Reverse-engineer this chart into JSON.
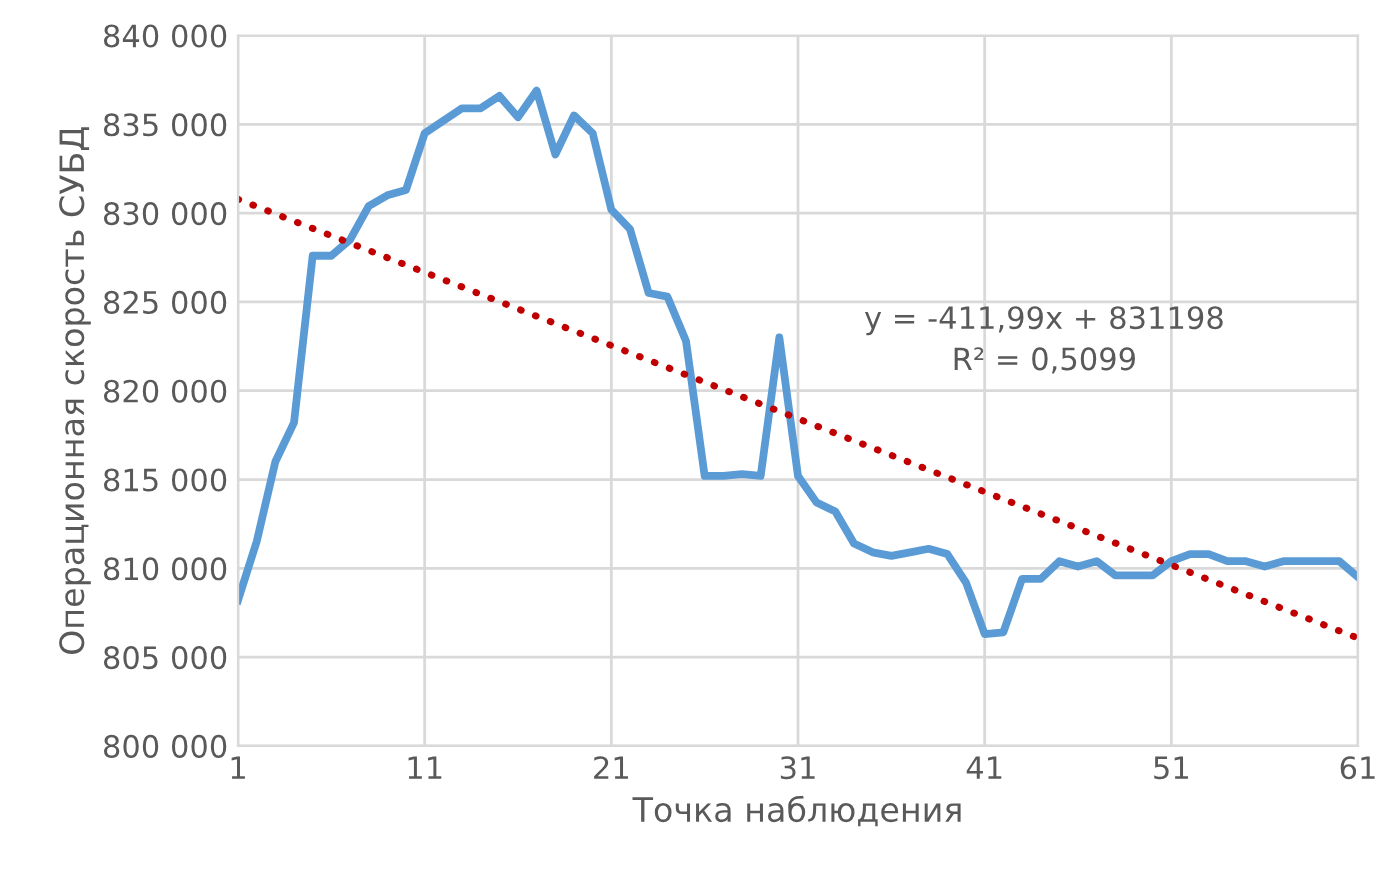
{
  "chart_data": {
    "type": "line",
    "xlabel": "Точка наблюдения",
    "ylabel": "Операционная скорость СУБД",
    "x": [
      1,
      2,
      3,
      4,
      5,
      6,
      7,
      8,
      9,
      10,
      11,
      12,
      13,
      14,
      15,
      16,
      17,
      18,
      19,
      20,
      21,
      22,
      23,
      24,
      25,
      26,
      27,
      28,
      29,
      30,
      31,
      32,
      33,
      34,
      35,
      36,
      37,
      38,
      39,
      40,
      41,
      42,
      43,
      44,
      45,
      46,
      47,
      48,
      49,
      50,
      51,
      52,
      53,
      54,
      55,
      56,
      57,
      58,
      59,
      60,
      61
    ],
    "series": [
      {
        "color": "#5b9bd5",
        "line_style": "solid",
        "values": [
          808200,
          811500,
          816000,
          818200,
          827600,
          827600,
          828500,
          830400,
          831000,
          831300,
          834500,
          835200,
          835900,
          835900,
          836600,
          835400,
          836900,
          833300,
          835500,
          834500,
          830200,
          829100,
          825500,
          825300,
          822800,
          815200,
          815200,
          815300,
          815200,
          823000,
          815200,
          813700,
          813200,
          811400,
          810900,
          810700,
          810900,
          811100,
          810800,
          809200,
          806300,
          806400,
          809400,
          809400,
          810400,
          810100,
          810400,
          809600,
          809600,
          809600,
          810400,
          810800,
          810800,
          810400,
          810400,
          810100,
          810400,
          810400,
          810400,
          810400,
          809500
        ]
      },
      {
        "type": "line",
        "color": "#c00000",
        "line_style": "dotted",
        "x": [
          1,
          61
        ],
        "values": [
          830786,
          806067
        ]
      }
    ],
    "xlim": [
      1,
      61
    ],
    "xticks": [
      1,
      11,
      21,
      31,
      41,
      51,
      61
    ],
    "ylim": [
      800000,
      840000
    ],
    "yticks": [
      {
        "value": 800000,
        "label": "800 000"
      },
      {
        "value": 805000,
        "label": "805 000"
      },
      {
        "value": 810000,
        "label": "810 000"
      },
      {
        "value": 815000,
        "label": "815 000"
      },
      {
        "value": 820000,
        "label": "820 000"
      },
      {
        "value": 825000,
        "label": "825 000"
      },
      {
        "value": 830000,
        "label": "830 000"
      },
      {
        "value": 835000,
        "label": "835 000"
      },
      {
        "value": 840000,
        "label": "840 000"
      }
    ],
    "grid": true,
    "legend": false,
    "marker": "none",
    "annotations": [
      "y = -411,99x + 831198\nR² = 0,5099"
    ]
  }
}
